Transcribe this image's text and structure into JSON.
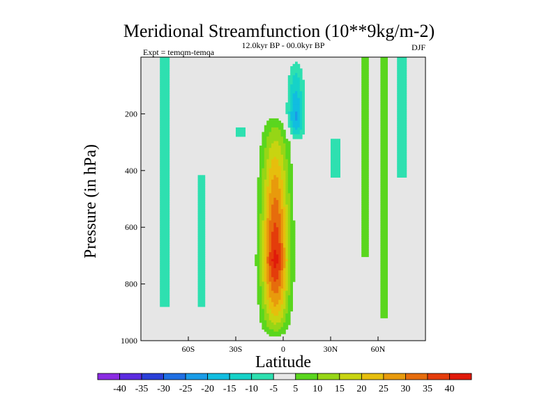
{
  "chart_data": {
    "type": "heatmap",
    "title": "Meridional Streamfunction (10**9kg/m-2)",
    "left_label": "Expt = temqm-temqa",
    "center_label": "12.0kyr BP - 00.0kyr BP",
    "right_label": "DJF",
    "xlabel": "Latitude",
    "ylabel": "Pressure (in hPa)",
    "xlim": [
      -90,
      90
    ],
    "ylim": [
      1000,
      0
    ],
    "x_ticks": [
      {
        "value": -60,
        "label": "60S"
      },
      {
        "value": -30,
        "label": "30S"
      },
      {
        "value": 0,
        "label": "0"
      },
      {
        "value": 30,
        "label": "30N"
      },
      {
        "value": 60,
        "label": "60N"
      }
    ],
    "y_ticks": [
      {
        "value": 200,
        "label": "200"
      },
      {
        "value": 400,
        "label": "400"
      },
      {
        "value": 600,
        "label": "600"
      },
      {
        "value": 800,
        "label": "800"
      },
      {
        "value": 1000,
        "label": "1000"
      }
    ],
    "levels": [
      -40,
      -35,
      -30,
      -25,
      -20,
      -15,
      -10,
      -5,
      5,
      10,
      15,
      20,
      25,
      30,
      35,
      40
    ],
    "colorbar_labels": [
      "-40",
      "-35",
      "-30",
      "-25",
      "-20",
      "-15",
      "-10",
      "-5",
      "5",
      "10",
      "15",
      "20",
      "25",
      "30",
      "35",
      "40"
    ],
    "colors": [
      "#8a2be2",
      "#5b2be0",
      "#2a3fd8",
      "#1f6fe3",
      "#199ce8",
      "#11bde0",
      "#16d2c8",
      "#2ee0b0",
      "#e8e8e8",
      "#5ad61e",
      "#96d616",
      "#c8d411",
      "#e6be0d",
      "#e89a0c",
      "#e66c0c",
      "#e43c0b",
      "#e01a0a"
    ],
    "background_color": "#e6e6e6",
    "features": [
      {
        "name": "main-positive-cell",
        "lat_center": -5,
        "lat_halfwidth": 10,
        "p_top": 200,
        "p_bottom": 990,
        "peak": 42,
        "peak_pressure": 720
      },
      {
        "name": "upper-negative-cell",
        "lat_center": 8,
        "lat_halfwidth": 6,
        "p_top": 0,
        "p_bottom": 300,
        "peak": -22,
        "peak_pressure": 220
      },
      {
        "name": "band-75S",
        "lat_center": -75,
        "value": -5,
        "p_top": 0,
        "p_bottom": 880
      },
      {
        "name": "band-52S",
        "lat_center": -52,
        "value": -5,
        "p_top": 420,
        "p_bottom": 880
      },
      {
        "name": "band-27S",
        "lat_center": -27,
        "value": -5,
        "p_top": 250,
        "p_bottom": 280
      },
      {
        "name": "band-33N",
        "lat_center": 33,
        "value": -5,
        "p_top": 290,
        "p_bottom": 420
      },
      {
        "name": "band-52N",
        "lat_center": 52,
        "value": 5,
        "p_top": 0,
        "p_bottom": 700
      },
      {
        "name": "band-64N",
        "lat_center": 64,
        "value": 5,
        "p_top": 0,
        "p_bottom": 920
      },
      {
        "name": "band-75N",
        "lat_center": 75,
        "value": -5,
        "p_top": 0,
        "p_bottom": 420
      }
    ]
  }
}
